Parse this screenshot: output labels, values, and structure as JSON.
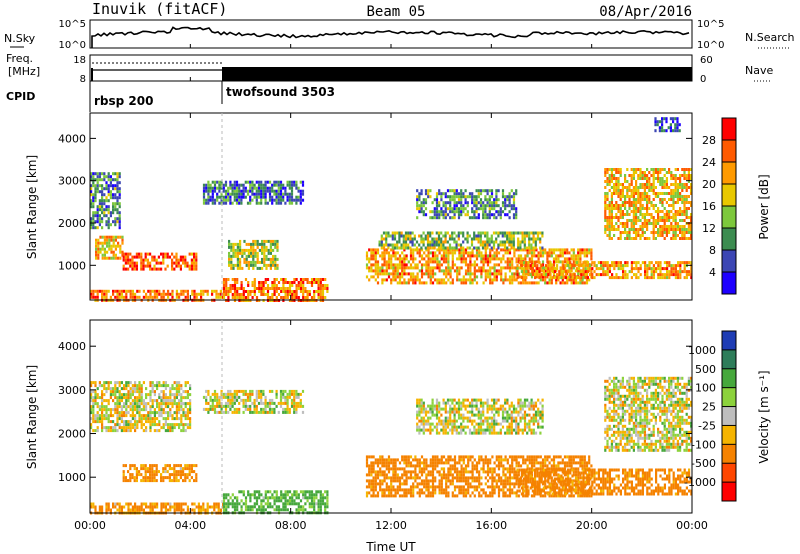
{
  "header": {
    "station": "Inuvik (fitACF)",
    "beam": "Beam 05",
    "date": "08/Apr/2016"
  },
  "top_panels": {
    "nsky_label": "N.Sky",
    "nsky_ticks": [
      "10^5",
      "10^0"
    ],
    "nsearch_label": "N.Search",
    "freq_label_1": "Freq.",
    "freq_label_2": "[MHz]",
    "freq_ticks": [
      "18",
      "8"
    ],
    "nave_ticks": [
      "60",
      "0"
    ],
    "nave_label": "Nave",
    "cpid_label": "CPID",
    "cpid_segments": [
      {
        "label": "rbsp 200",
        "start_hour": 0
      },
      {
        "label": "twofsound 3503",
        "start_hour": 5.3
      }
    ]
  },
  "axes": {
    "ylabel": "Slant Range [km]",
    "xlabel": "Time UT",
    "x_ticks": [
      "00:00",
      "04:00",
      "08:00",
      "12:00",
      "16:00",
      "20:00",
      "00:00"
    ],
    "y_ticks": [
      "1000",
      "2000",
      "3000",
      "4000"
    ]
  },
  "colorbars": {
    "power": {
      "label": "Power [dB]",
      "ticks": [
        "28",
        "24",
        "20",
        "16",
        "12",
        "8",
        "4"
      ],
      "colors": [
        "#ff0000",
        "#ff5a00",
        "#ff9a00",
        "#e8c800",
        "#7dc83c",
        "#3c8c50",
        "#3c46b4",
        "#1e00ff"
      ]
    },
    "velocity": {
      "label": "Velocity [m s⁻¹]",
      "ticks": [
        "1000",
        "500",
        "100",
        "25",
        "-25",
        "-100",
        "-500",
        "-1000"
      ],
      "colors": [
        "#1e3cb4",
        "#2e7d5a",
        "#46a83c",
        "#8cd23c",
        "#bebebe",
        "#f5b400",
        "#f58200",
        "#ff4600",
        "#ff0000"
      ]
    }
  },
  "chart_data": [
    {
      "type": "heatmap",
      "title": "Power",
      "xlabel": "Time UT",
      "ylabel": "Slant Range [km]",
      "xlim": [
        0,
        24
      ],
      "ylim": [
        180,
        4600
      ],
      "colorbar_label": "Power [dB]",
      "features": [
        {
          "t0": 0.0,
          "t1": 5.3,
          "r0": 180,
          "r1": 420,
          "level": 24
        },
        {
          "t0": 0.2,
          "t1": 1.3,
          "r0": 1200,
          "r1": 1700,
          "level": 20
        },
        {
          "t0": 1.3,
          "t1": 4.2,
          "r0": 900,
          "r1": 1300,
          "level": 26
        },
        {
          "t0": 0.0,
          "t1": 1.2,
          "r0": 1900,
          "r1": 3200,
          "level": 10
        },
        {
          "t0": 5.3,
          "t1": 9.5,
          "r0": 200,
          "r1": 700,
          "level": 24
        },
        {
          "t0": 5.5,
          "t1": 7.5,
          "r0": 900,
          "r1": 1600,
          "level": 16
        },
        {
          "t0": 4.5,
          "t1": 8.5,
          "r0": 2500,
          "r1": 3000,
          "level": 8
        },
        {
          "t0": 11.0,
          "t1": 20.0,
          "r0": 600,
          "r1": 1400,
          "level": 22
        },
        {
          "t0": 11.5,
          "t1": 18.0,
          "r0": 1400,
          "r1": 1800,
          "level": 14
        },
        {
          "t0": 13.0,
          "t1": 17.0,
          "r0": 2100,
          "r1": 2800,
          "level": 10
        },
        {
          "t0": 17.0,
          "t1": 24.0,
          "r0": 700,
          "r1": 1100,
          "level": 22
        },
        {
          "t0": 20.5,
          "t1": 24.0,
          "r0": 1600,
          "r1": 3300,
          "level": 20
        },
        {
          "t0": 22.5,
          "t1": 23.5,
          "r0": 4200,
          "r1": 4500,
          "level": 6
        }
      ]
    },
    {
      "type": "heatmap",
      "title": "Velocity",
      "xlabel": "Time UT",
      "ylabel": "Slant Range [km]",
      "xlim": [
        0,
        24
      ],
      "ylim": [
        180,
        4600
      ],
      "colorbar_label": "Velocity [m s⁻¹]",
      "features": [
        {
          "t0": 0.0,
          "t1": 5.3,
          "r0": 180,
          "r1": 420,
          "level": -150
        },
        {
          "t0": 1.3,
          "t1": 4.2,
          "r0": 900,
          "r1": 1300,
          "level": -150
        },
        {
          "t0": 0.0,
          "t1": 4.0,
          "r0": 2100,
          "r1": 3200,
          "level": 0
        },
        {
          "t0": 5.3,
          "t1": 9.5,
          "r0": 200,
          "r1": 700,
          "level": 150
        },
        {
          "t0": 4.5,
          "t1": 8.5,
          "r0": 2500,
          "r1": 3000,
          "level": 0
        },
        {
          "t0": 11.0,
          "t1": 20.0,
          "r0": 600,
          "r1": 1500,
          "level": -200
        },
        {
          "t0": 13.0,
          "t1": 18.0,
          "r0": 2000,
          "r1": 2800,
          "level": 0
        },
        {
          "t0": 17.0,
          "t1": 24.0,
          "r0": 600,
          "r1": 1200,
          "level": -200
        },
        {
          "t0": 20.5,
          "t1": 24.0,
          "r0": 1600,
          "r1": 3300,
          "level": 0
        }
      ]
    }
  ]
}
